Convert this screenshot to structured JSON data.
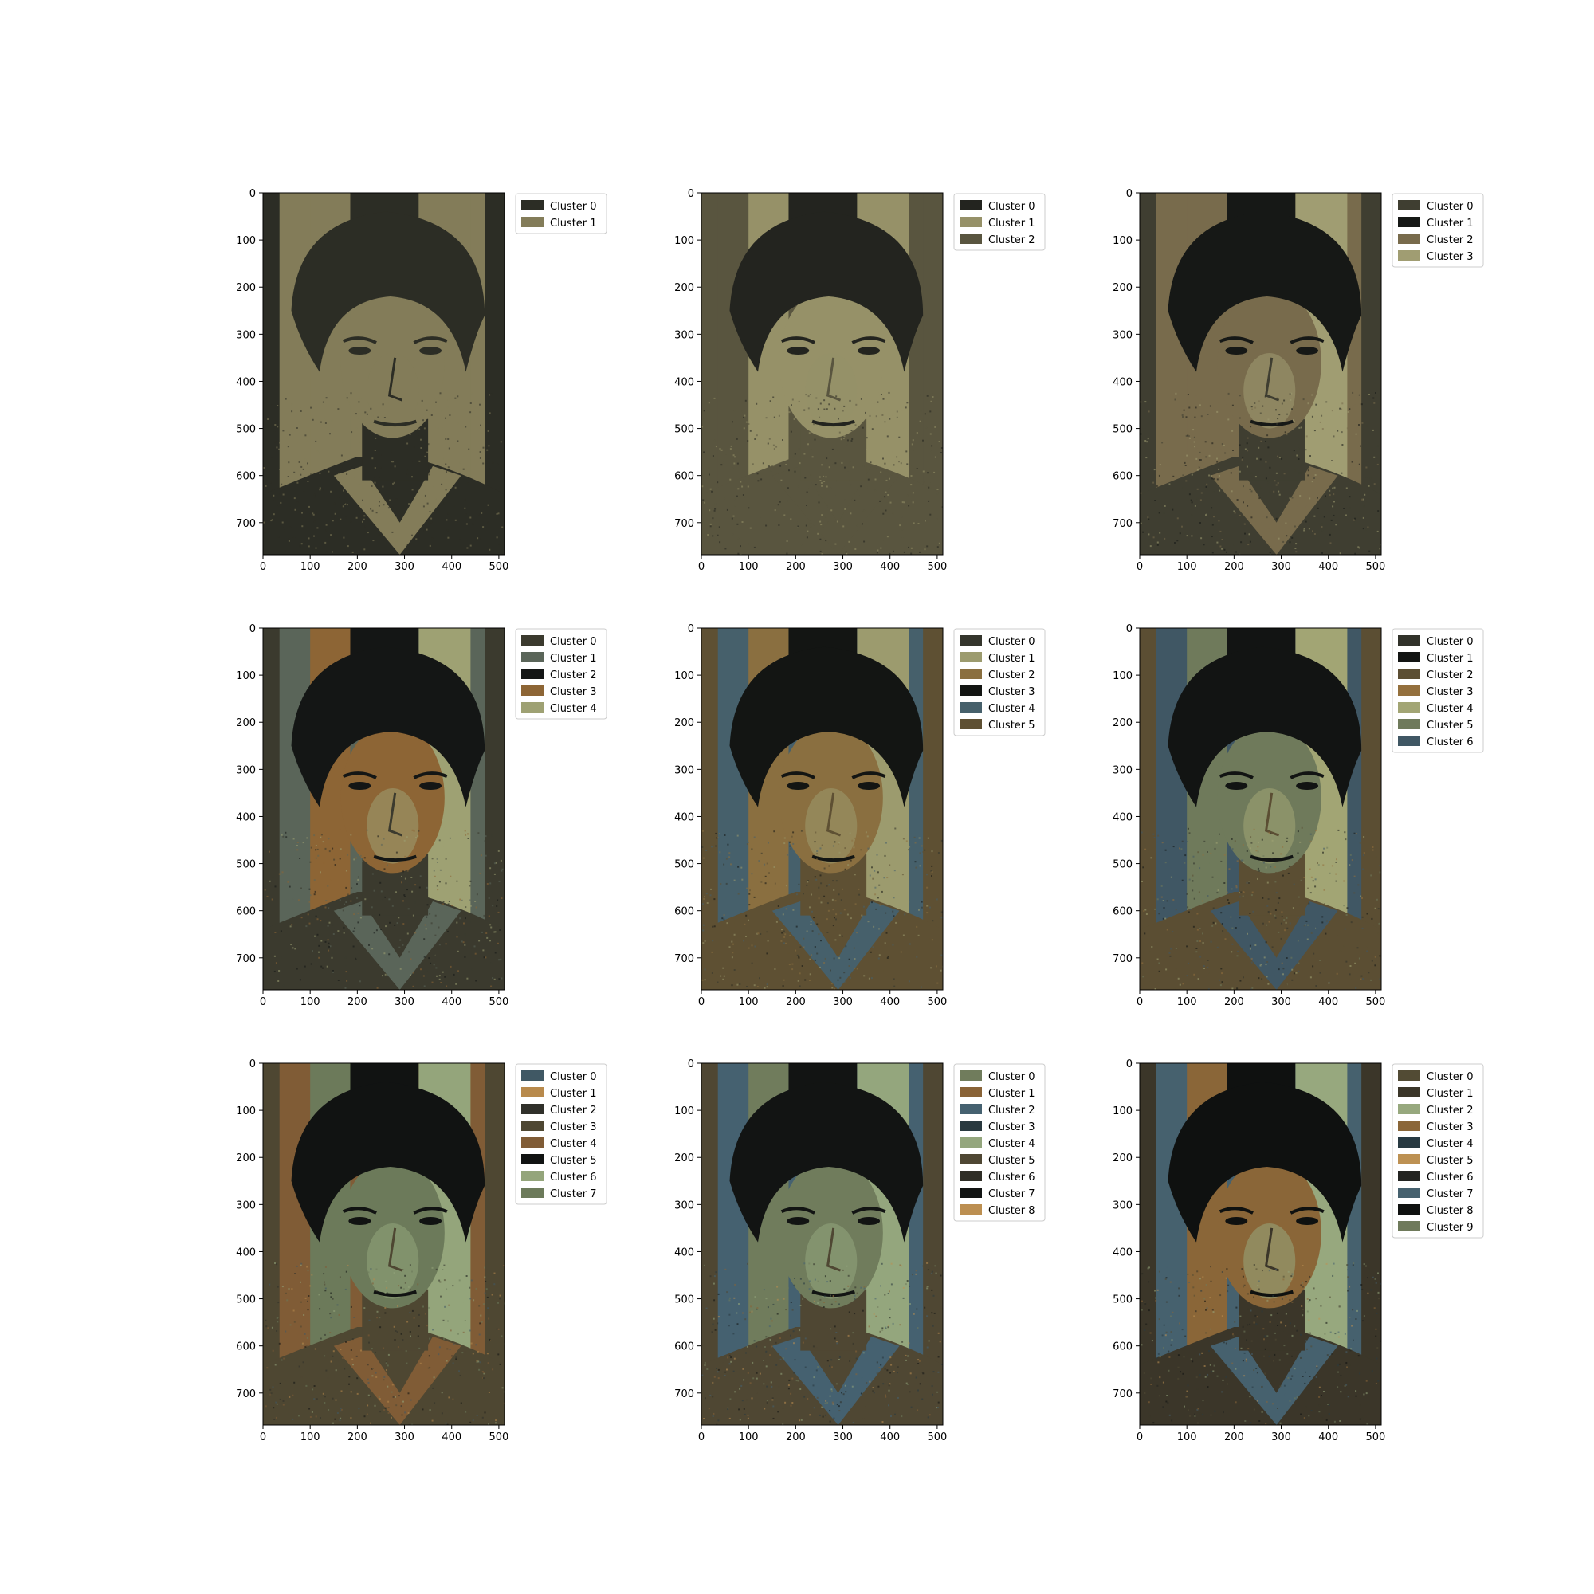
{
  "figure": {
    "background": "#ffffff"
  },
  "chart_data": [
    {
      "type": "other",
      "description_kind": "k-means color quantized portrait",
      "xlim": [
        0,
        512
      ],
      "ylim": [
        768,
        0
      ],
      "xticks": [
        0,
        100,
        200,
        300,
        400,
        500
      ],
      "yticks": [
        0,
        100,
        200,
        300,
        400,
        500,
        600,
        700
      ],
      "legend_position": "upper-right-outside",
      "clusters": [
        {
          "name": "Cluster 0",
          "color": "#2c2d25"
        },
        {
          "name": "Cluster 1",
          "color": "#837c59"
        }
      ]
    },
    {
      "type": "other",
      "description_kind": "k-means color quantized portrait",
      "xlim": [
        0,
        512
      ],
      "ylim": [
        768,
        0
      ],
      "xticks": [
        0,
        100,
        200,
        300,
        400,
        500
      ],
      "yticks": [
        0,
        100,
        200,
        300,
        400,
        500,
        600,
        700
      ],
      "legend_position": "upper-right-outside",
      "clusters": [
        {
          "name": "Cluster 0",
          "color": "#23241f"
        },
        {
          "name": "Cluster 1",
          "color": "#969168"
        },
        {
          "name": "Cluster 2",
          "color": "#59553f"
        }
      ]
    },
    {
      "type": "other",
      "description_kind": "k-means color quantized portrait",
      "xlim": [
        0,
        512
      ],
      "ylim": [
        768,
        0
      ],
      "xticks": [
        0,
        100,
        200,
        300,
        400,
        500
      ],
      "yticks": [
        0,
        100,
        200,
        300,
        400,
        500,
        600,
        700
      ],
      "legend_position": "upper-right-outside",
      "clusters": [
        {
          "name": "Cluster 0",
          "color": "#3f3e31"
        },
        {
          "name": "Cluster 1",
          "color": "#161816"
        },
        {
          "name": "Cluster 2",
          "color": "#786b4c"
        },
        {
          "name": "Cluster 3",
          "color": "#a09d72"
        }
      ]
    },
    {
      "type": "other",
      "description_kind": "k-means color quantized portrait",
      "xlim": [
        0,
        512
      ],
      "ylim": [
        768,
        0
      ],
      "xticks": [
        0,
        100,
        200,
        300,
        400,
        500
      ],
      "yticks": [
        0,
        100,
        200,
        300,
        400,
        500,
        600,
        700
      ],
      "legend_position": "upper-right-outside",
      "clusters": [
        {
          "name": "Cluster 0",
          "color": "#3b3a2e"
        },
        {
          "name": "Cluster 1",
          "color": "#5a6559"
        },
        {
          "name": "Cluster 2",
          "color": "#141615"
        },
        {
          "name": "Cluster 3",
          "color": "#8d6535"
        },
        {
          "name": "Cluster 4",
          "color": "#9ea173"
        }
      ]
    },
    {
      "type": "other",
      "description_kind": "k-means color quantized portrait",
      "xlim": [
        0,
        512
      ],
      "ylim": [
        768,
        0
      ],
      "xticks": [
        0,
        100,
        200,
        300,
        400,
        500
      ],
      "yticks": [
        0,
        100,
        200,
        300,
        400,
        500,
        600,
        700
      ],
      "legend_position": "upper-right-outside",
      "clusters": [
        {
          "name": "Cluster 0",
          "color": "#34352c"
        },
        {
          "name": "Cluster 1",
          "color": "#9c9b6e"
        },
        {
          "name": "Cluster 2",
          "color": "#8a6f40"
        },
        {
          "name": "Cluster 3",
          "color": "#131513"
        },
        {
          "name": "Cluster 4",
          "color": "#46606b"
        },
        {
          "name": "Cluster 5",
          "color": "#5e5033"
        }
      ]
    },
    {
      "type": "other",
      "description_kind": "k-means color quantized portrait",
      "xlim": [
        0,
        512
      ],
      "ylim": [
        768,
        0
      ],
      "xticks": [
        0,
        100,
        200,
        300,
        400,
        500
      ],
      "yticks": [
        0,
        100,
        200,
        300,
        400,
        500,
        600,
        700
      ],
      "legend_position": "upper-right-outside",
      "clusters": [
        {
          "name": "Cluster 0",
          "color": "#31322a"
        },
        {
          "name": "Cluster 1",
          "color": "#121413"
        },
        {
          "name": "Cluster 2",
          "color": "#5b4e33"
        },
        {
          "name": "Cluster 3",
          "color": "#94703d"
        },
        {
          "name": "Cluster 4",
          "color": "#a2a574"
        },
        {
          "name": "Cluster 5",
          "color": "#6f7a5b"
        },
        {
          "name": "Cluster 6",
          "color": "#405764"
        }
      ]
    },
    {
      "type": "other",
      "description_kind": "k-means color quantized portrait",
      "xlim": [
        0,
        512
      ],
      "ylim": [
        768,
        0
      ],
      "xticks": [
        0,
        100,
        200,
        300,
        400,
        500
      ],
      "yticks": [
        0,
        100,
        200,
        300,
        400,
        500,
        600,
        700
      ],
      "legend_position": "upper-right-outside",
      "clusters": [
        {
          "name": "Cluster 0",
          "color": "#405864"
        },
        {
          "name": "Cluster 1",
          "color": "#b88a4c"
        },
        {
          "name": "Cluster 2",
          "color": "#30302a"
        },
        {
          "name": "Cluster 3",
          "color": "#4e4732"
        },
        {
          "name": "Cluster 4",
          "color": "#805c36"
        },
        {
          "name": "Cluster 5",
          "color": "#111312"
        },
        {
          "name": "Cluster 6",
          "color": "#94a57b"
        },
        {
          "name": "Cluster 7",
          "color": "#6c7a5a"
        }
      ]
    },
    {
      "type": "other",
      "description_kind": "k-means color quantized portrait",
      "xlim": [
        0,
        512
      ],
      "ylim": [
        768,
        0
      ],
      "xticks": [
        0,
        100,
        200,
        300,
        400,
        500
      ],
      "yticks": [
        0,
        100,
        200,
        300,
        400,
        500,
        600,
        700
      ],
      "legend_position": "upper-right-outside",
      "clusters": [
        {
          "name": "Cluster 0",
          "color": "#707c5c"
        },
        {
          "name": "Cluster 1",
          "color": "#896337"
        },
        {
          "name": "Cluster 2",
          "color": "#456170"
        },
        {
          "name": "Cluster 3",
          "color": "#29393f"
        },
        {
          "name": "Cluster 4",
          "color": "#94a67d"
        },
        {
          "name": "Cluster 5",
          "color": "#4f4733"
        },
        {
          "name": "Cluster 6",
          "color": "#2f2e27"
        },
        {
          "name": "Cluster 7",
          "color": "#121413"
        },
        {
          "name": "Cluster 8",
          "color": "#bc8f51"
        }
      ]
    },
    {
      "type": "other",
      "description_kind": "k-means color quantized portrait",
      "xlim": [
        0,
        512
      ],
      "ylim": [
        768,
        0
      ],
      "xticks": [
        0,
        100,
        200,
        300,
        400,
        500
      ],
      "yticks": [
        0,
        100,
        200,
        300,
        400,
        500,
        600,
        700
      ],
      "legend_position": "upper-right-outside",
      "clusters": [
        {
          "name": "Cluster 0",
          "color": "#524b34"
        },
        {
          "name": "Cluster 1",
          "color": "#3b3629"
        },
        {
          "name": "Cluster 2",
          "color": "#97a87e"
        },
        {
          "name": "Cluster 3",
          "color": "#8a6638"
        },
        {
          "name": "Cluster 4",
          "color": "#283a42"
        },
        {
          "name": "Cluster 5",
          "color": "#bd9153"
        },
        {
          "name": "Cluster 6",
          "color": "#232421"
        },
        {
          "name": "Cluster 7",
          "color": "#46616e"
        },
        {
          "name": "Cluster 8",
          "color": "#0f1110"
        },
        {
          "name": "Cluster 9",
          "color": "#6f7a5b"
        }
      ]
    }
  ]
}
